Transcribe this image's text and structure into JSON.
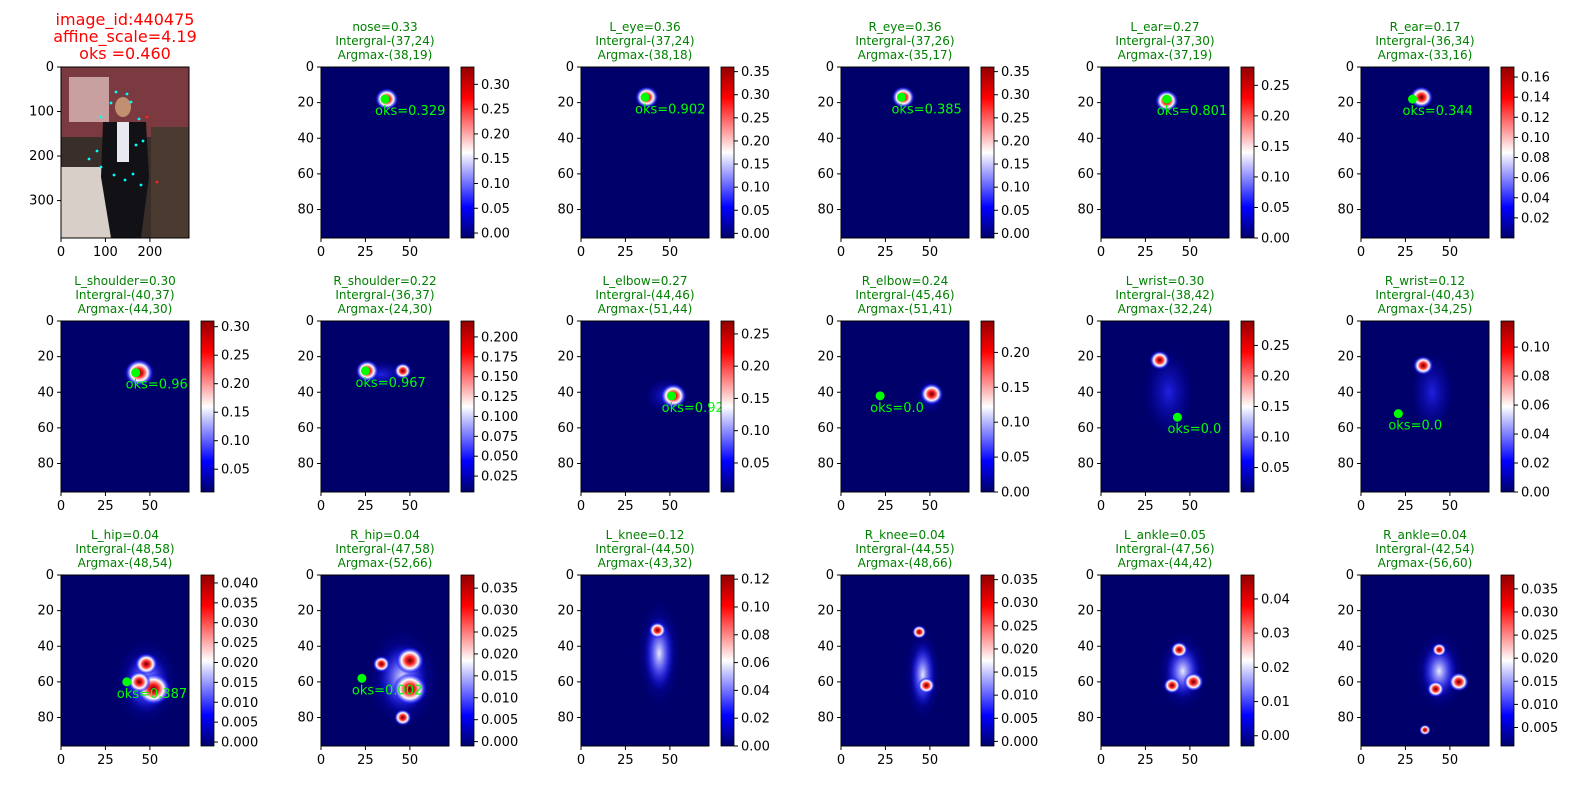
{
  "colors": {
    "title_main": "#ff0000",
    "title_panel": "#008000",
    "annotation": "#00ff00",
    "heat_low": "#00006a",
    "heat_mid": "#ffffff",
    "heat_high": "#900000"
  },
  "chart_data": [
    {
      "type": "image",
      "title_lines": [
        "image_id:440475",
        "affine_scale=4.19",
        "oks =0.460"
      ],
      "x_ticks": [
        0,
        100,
        200
      ],
      "y_ticks": [
        0,
        100,
        200,
        300
      ],
      "xlim": [
        0,
        288
      ],
      "ylim": [
        384,
        0
      ]
    },
    {
      "type": "heatmap",
      "title_lines": [
        "nose=0.33",
        "Intergral-(37,24)",
        "Argmax-(38,19)"
      ],
      "annotation": "oks=0.329",
      "point": [
        36,
        18
      ],
      "colorbar_ticks": [
        "0.00",
        "0.05",
        "0.10",
        "0.15",
        "0.20",
        "0.25",
        "0.30"
      ],
      "clim": [
        -0.01,
        0.335
      ],
      "x_ticks": [
        0,
        25,
        50
      ],
      "y_ticks": [
        0,
        20,
        40,
        60,
        80
      ]
    },
    {
      "type": "heatmap",
      "title_lines": [
        "L_eye=0.36",
        "Intergral-(37,24)",
        "Argmax-(38,18)"
      ],
      "annotation": "oks=0.902",
      "point": [
        36,
        17
      ],
      "colorbar_ticks": [
        "0.00",
        "0.05",
        "0.10",
        "0.15",
        "0.20",
        "0.25",
        "0.30",
        "0.35"
      ],
      "clim": [
        -0.01,
        0.36
      ],
      "x_ticks": [
        0,
        25,
        50
      ],
      "y_ticks": [
        0,
        20,
        40,
        60,
        80
      ]
    },
    {
      "type": "heatmap",
      "title_lines": [
        "R_eye=0.36",
        "Intergral-(37,26)",
        "Argmax-(35,17)"
      ],
      "annotation": "oks=0.385",
      "point": [
        34,
        17
      ],
      "colorbar_ticks": [
        "0.00",
        "0.05",
        "0.10",
        "0.15",
        "0.20",
        "0.25",
        "0.30",
        "0.35"
      ],
      "clim": [
        -0.01,
        0.36
      ],
      "x_ticks": [
        0,
        25,
        50
      ],
      "y_ticks": [
        0,
        20,
        40,
        60,
        80
      ]
    },
    {
      "type": "heatmap",
      "title_lines": [
        "L_ear=0.27",
        "Intergral-(37,30)",
        "Argmax-(37,19)"
      ],
      "annotation": "oks=0.801",
      "point": [
        37,
        18
      ],
      "colorbar_ticks": [
        "0.00",
        "0.05",
        "0.10",
        "0.15",
        "0.20",
        "0.25"
      ],
      "clim": [
        0,
        0.28
      ],
      "x_ticks": [
        0,
        25,
        50
      ],
      "y_ticks": [
        0,
        20,
        40,
        60,
        80
      ]
    },
    {
      "type": "heatmap",
      "title_lines": [
        "R_ear=0.17",
        "Intergral-(36,34)",
        "Argmax-(33,16)"
      ],
      "annotation": "oks=0.344",
      "point": [
        29,
        18
      ],
      "colorbar_ticks": [
        "0.02",
        "0.04",
        "0.06",
        "0.08",
        "0.10",
        "0.12",
        "0.14",
        "0.16"
      ],
      "clim": [
        0.0,
        0.17
      ],
      "x_ticks": [
        0,
        25,
        50
      ],
      "y_ticks": [
        0,
        20,
        40,
        60,
        80
      ]
    },
    {
      "type": "heatmap",
      "title_lines": [
        "L_shoulder=0.30",
        "Intergral-(40,37)",
        "Argmax-(44,30)"
      ],
      "annotation": "oks=0.96",
      "point": [
        42,
        29
      ],
      "colorbar_ticks": [
        "0.05",
        "0.10",
        "0.15",
        "0.20",
        "0.25",
        "0.30"
      ],
      "clim": [
        0.01,
        0.31
      ],
      "x_ticks": [
        0,
        25,
        50
      ],
      "y_ticks": [
        0,
        20,
        40,
        60,
        80
      ]
    },
    {
      "type": "heatmap",
      "title_lines": [
        "R_shoulder=0.22",
        "Intergral-(36,37)",
        "Argmax-(24,30)"
      ],
      "annotation": "oks=0.967",
      "point": [
        25,
        28
      ],
      "colorbar_ticks": [
        "0.025",
        "0.050",
        "0.075",
        "0.100",
        "0.125",
        "0.150",
        "0.175",
        "0.200"
      ],
      "clim": [
        0.005,
        0.22
      ],
      "x_ticks": [
        0,
        25,
        50
      ],
      "y_ticks": [
        0,
        20,
        40,
        60,
        80
      ]
    },
    {
      "type": "heatmap",
      "title_lines": [
        "L_elbow=0.27",
        "Intergral-(44,46)",
        "Argmax-(51,44)"
      ],
      "annotation": "oks=0.92",
      "point": [
        51,
        42
      ],
      "colorbar_ticks": [
        "0.05",
        "0.10",
        "0.15",
        "0.20",
        "0.25"
      ],
      "clim": [
        0.005,
        0.27
      ],
      "x_ticks": [
        0,
        25,
        50
      ],
      "y_ticks": [
        0,
        20,
        40,
        60,
        80
      ]
    },
    {
      "type": "heatmap",
      "title_lines": [
        "R_elbow=0.24",
        "Intergral-(45,46)",
        "Argmax-(51,41)"
      ],
      "annotation": "oks=0.0",
      "point": [
        22,
        42
      ],
      "colorbar_ticks": [
        "0.00",
        "0.05",
        "0.10",
        "0.15",
        "0.20"
      ],
      "clim": [
        0,
        0.245
      ],
      "x_ticks": [
        0,
        25,
        50
      ],
      "y_ticks": [
        0,
        20,
        40,
        60,
        80
      ]
    },
    {
      "type": "heatmap",
      "title_lines": [
        "L_wrist=0.30",
        "Intergral-(38,42)",
        "Argmax-(32,24)"
      ],
      "annotation": "oks=0.0",
      "point": [
        43,
        54
      ],
      "colorbar_ticks": [
        "0.05",
        "0.10",
        "0.15",
        "0.20",
        "0.25"
      ],
      "clim": [
        0.01,
        0.29
      ],
      "x_ticks": [
        0,
        25,
        50
      ],
      "y_ticks": [
        0,
        20,
        40,
        60,
        80
      ]
    },
    {
      "type": "heatmap",
      "title_lines": [
        "R_wrist=0.12",
        "Intergral-(40,43)",
        "Argmax-(34,25)"
      ],
      "annotation": "oks=0.0",
      "point": [
        21,
        52
      ],
      "colorbar_ticks": [
        "0.00",
        "0.02",
        "0.04",
        "0.06",
        "0.08",
        "0.10"
      ],
      "clim": [
        0,
        0.118
      ],
      "x_ticks": [
        0,
        25,
        50
      ],
      "y_ticks": [
        0,
        20,
        40,
        60,
        80
      ]
    },
    {
      "type": "heatmap",
      "title_lines": [
        "L_hip=0.04",
        "Intergral-(48,58)",
        "Argmax-(48,54)"
      ],
      "annotation": "oks=0.387",
      "point": [
        37,
        60
      ],
      "colorbar_ticks": [
        "0.000",
        "0.005",
        "0.010",
        "0.015",
        "0.020",
        "0.025",
        "0.030",
        "0.035",
        "0.040"
      ],
      "clim": [
        -0.001,
        0.042
      ],
      "x_ticks": [
        0,
        25,
        50
      ],
      "y_ticks": [
        0,
        20,
        40,
        60,
        80
      ]
    },
    {
      "type": "heatmap",
      "title_lines": [
        "R_hip=0.04",
        "Intergral-(47,58)",
        "Argmax-(52,66)"
      ],
      "annotation": "oks=0.002",
      "point": [
        23,
        58
      ],
      "colorbar_ticks": [
        "0.000",
        "0.005",
        "0.010",
        "0.015",
        "0.020",
        "0.025",
        "0.030",
        "0.035"
      ],
      "clim": [
        -0.001,
        0.038
      ],
      "x_ticks": [
        0,
        25,
        50
      ],
      "y_ticks": [
        0,
        20,
        40,
        60,
        80
      ]
    },
    {
      "type": "heatmap",
      "title_lines": [
        "L_knee=0.12",
        "Intergral-(44,50)",
        "Argmax-(43,32)"
      ],
      "annotation": "",
      "point": null,
      "colorbar_ticks": [
        "0.00",
        "0.02",
        "0.04",
        "0.06",
        "0.08",
        "0.10",
        "0.12"
      ],
      "clim": [
        0,
        0.123
      ],
      "x_ticks": [
        0,
        25,
        50
      ],
      "y_ticks": [
        0,
        20,
        40,
        60,
        80
      ]
    },
    {
      "type": "heatmap",
      "title_lines": [
        "R_knee=0.04",
        "Intergral-(44,55)",
        "Argmax-(48,66)"
      ],
      "annotation": "",
      "point": null,
      "colorbar_ticks": [
        "0.000",
        "0.005",
        "0.010",
        "0.015",
        "0.020",
        "0.025",
        "0.030",
        "0.035"
      ],
      "clim": [
        -0.001,
        0.036
      ],
      "x_ticks": [
        0,
        25,
        50
      ],
      "y_ticks": [
        0,
        20,
        40,
        60,
        80
      ]
    },
    {
      "type": "heatmap",
      "title_lines": [
        "L_ankle=0.05",
        "Intergral-(47,56)",
        "Argmax-(44,42)"
      ],
      "annotation": "",
      "point": null,
      "colorbar_ticks": [
        "0.00",
        "0.01",
        "0.02",
        "0.03",
        "0.04"
      ],
      "clim": [
        -0.003,
        0.047
      ],
      "x_ticks": [
        0,
        25,
        50
      ],
      "y_ticks": [
        0,
        20,
        40,
        60,
        80
      ]
    },
    {
      "type": "heatmap",
      "title_lines": [
        "R_ankle=0.04",
        "Intergral-(42,54)",
        "Argmax-(56,60)"
      ],
      "annotation": "",
      "point": null,
      "colorbar_ticks": [
        "0.005",
        "0.010",
        "0.015",
        "0.020",
        "0.025",
        "0.030",
        "0.035"
      ],
      "clim": [
        0.001,
        0.038
      ],
      "x_ticks": [
        0,
        25,
        50
      ],
      "y_ticks": [
        0,
        20,
        40,
        60,
        80
      ]
    }
  ]
}
